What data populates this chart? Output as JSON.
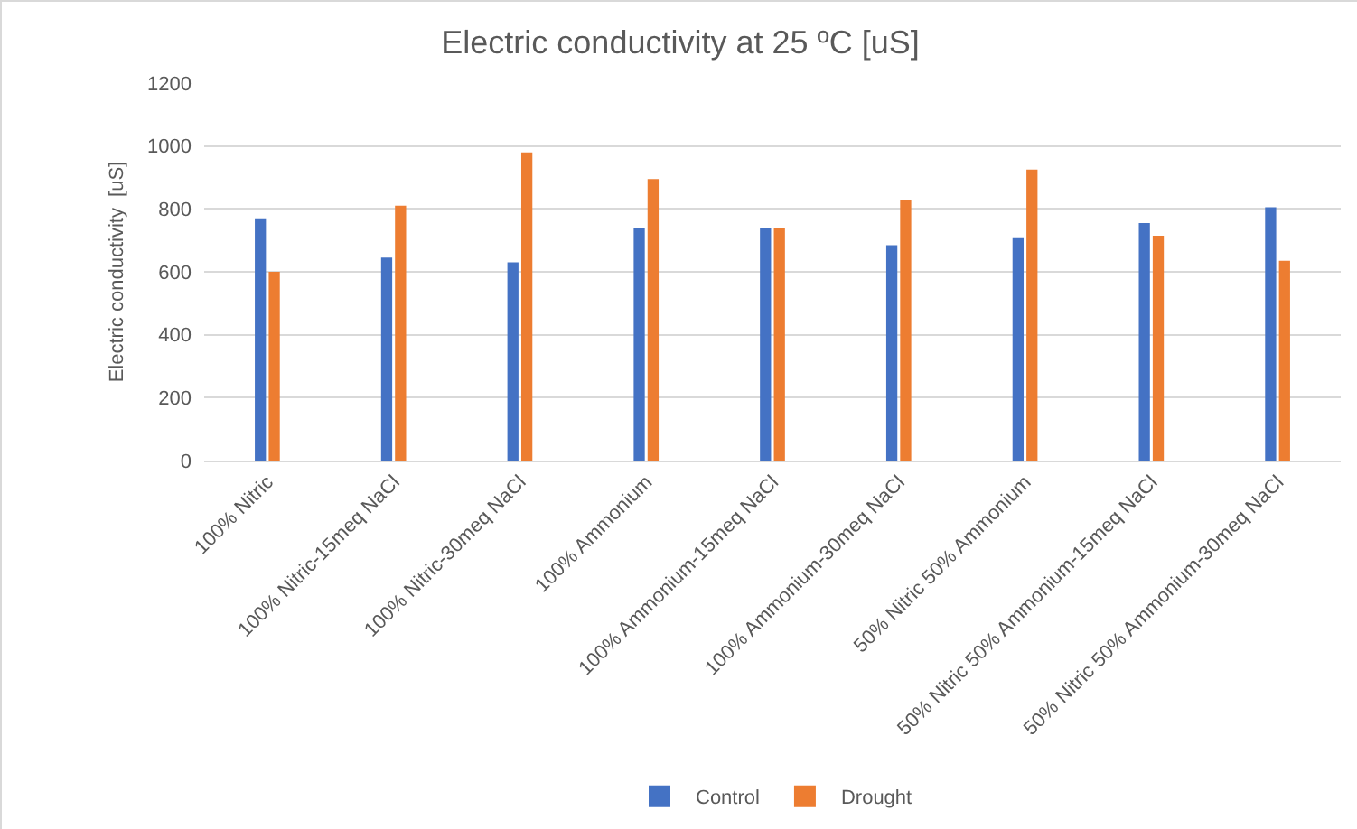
{
  "chart_data": {
    "type": "bar",
    "title": "Electric conductivity at 25 ºC [uS]",
    "ylabel": "Electric conductivity  [uS]",
    "categories": [
      "100% Nitric",
      "100% Nitric-15meq NaCl",
      "100% Nitric-30meq NaCl",
      "100% Ammonium",
      "100% Ammonium-15meq NaCl",
      "100% Ammonium-30meq NaCl",
      "50% Nitric 50% Ammonium",
      "50% Nitric 50% Ammonium-15meq NaCl",
      "50% Nitric 50% Ammonium-30meq NaCl"
    ],
    "series": [
      {
        "name": "Control",
        "color": "#4472c4",
        "values": [
          770,
          645,
          630,
          740,
          740,
          685,
          710,
          755,
          805
        ]
      },
      {
        "name": "Drought",
        "color": "#ed7d31",
        "values": [
          600,
          810,
          980,
          895,
          740,
          830,
          925,
          715,
          635
        ]
      }
    ],
    "ylim": [
      0,
      1200
    ],
    "yticks": [
      0,
      200,
      400,
      600,
      800,
      1000,
      1200
    ],
    "grid": "y",
    "legend": "bottom"
  }
}
